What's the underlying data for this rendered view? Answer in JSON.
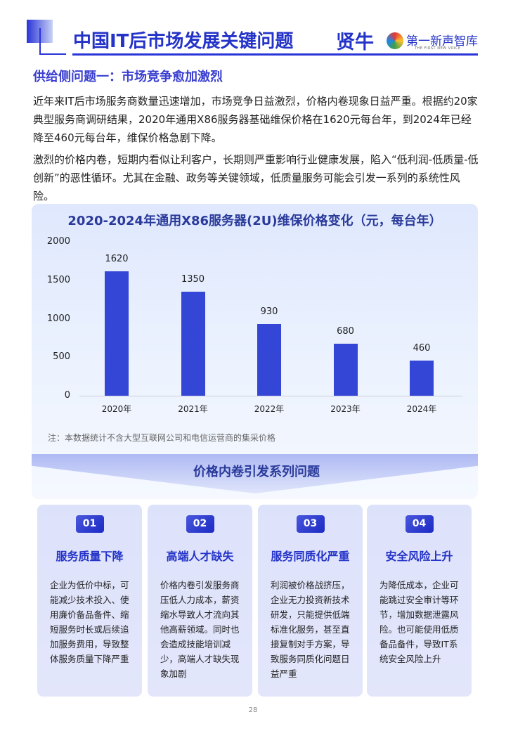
{
  "header": {
    "title": "中国IT后市场发展关键问题",
    "brand": "贤牛",
    "logo_text": "第一新声智库",
    "logo_sub": "THE FIRST NEW VOICE"
  },
  "section_title": "供给侧问题一：市场竞争愈加激烈",
  "paragraphs": [
    "近年来IT后市场服务商数量迅速增加，市场竞争日益激烈，价格内卷现象日益严重。根据约20家典型服务商调研结果，2020年通用X86服务器基础维保价格在1620元每台年，到2024年已经降至460元每台年，维保价格急剧下降。",
    "激烈的价格内卷，短期内看似让利客户，长期则严重影响行业健康发展，陷入“低利润-低质量-低创新”的恶性循环。尤其在金融、政务等关键领域，低质量服务可能会引发一系列的系统性风险。"
  ],
  "chart_data": {
    "type": "bar",
    "title": "2020-2024年通用X86服务器(2U)维保价格变化（元，每台年）",
    "categories": [
      "2020年",
      "2021年",
      "2022年",
      "2023年",
      "2024年"
    ],
    "values": [
      1620,
      1350,
      930,
      680,
      460
    ],
    "ylim": [
      0,
      2000
    ],
    "yticks": [
      0,
      500,
      1000,
      1500,
      2000
    ],
    "grid": false,
    "bar_color": "#3446d6"
  },
  "note": "注：本数据统计不含大型互联网公司和电信运营商的集采价格",
  "banner_title": "价格内卷引发系列问题",
  "cards": [
    {
      "num": "01",
      "title": "服务质量下降",
      "body": "企业为低价中标，可能减少技术投入、使用廉价备品备件、缩短服务时长或后续追加服务费用，导致整体服务质量下降严重"
    },
    {
      "num": "02",
      "title": "高端人才缺失",
      "body": "价格内卷引发服务商压低人力成本，薪资缩水导致人才流向其他高薪领域。同时也会造成技能培训减少，高端人才缺失现象加剧"
    },
    {
      "num": "03",
      "title": "服务同质化严重",
      "body": "利润被价格战挤压，企业无力投资新技术研发，只能提供低端标准化服务，甚至直接复制对手方案，导致服务同质化问题日益严重"
    },
    {
      "num": "04",
      "title": "安全风险上升",
      "body": "为降低成本，企业可能跳过安全审计等环节，增加数据泄露风险。也可能使用低质备品备件，导致IT系统安全风险上升"
    }
  ],
  "page_number": "28"
}
